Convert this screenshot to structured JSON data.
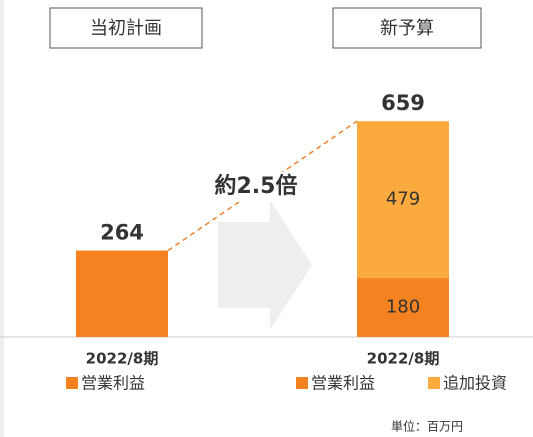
{
  "chart_data": {
    "type": "bar",
    "stacked": true,
    "categories": [
      "当初計画",
      "新予算"
    ],
    "period_labels": [
      "2022/8期",
      "2022/8期"
    ],
    "series": [
      {
        "name": "営業利益",
        "color": "#F58220",
        "values": [
          264,
          180
        ]
      },
      {
        "name": "追加投資",
        "color": "#FBAB3E",
        "values": [
          null,
          479
        ]
      }
    ],
    "totals": [
      264,
      659
    ],
    "annotation": "約2.5倍",
    "annotation_color": "#F0832B",
    "unit_note": "単位：百万円"
  }
}
